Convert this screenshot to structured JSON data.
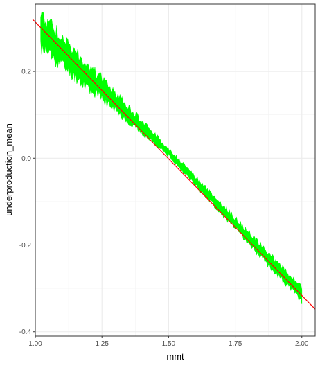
{
  "chart_data": {
    "type": "line",
    "title": "",
    "xlabel": "mmt",
    "ylabel": "underproduction_mean",
    "xlim": [
      1.0,
      2.05
    ],
    "ylim": [
      -0.41,
      0.355
    ],
    "x_ticks": [
      1.0,
      1.25,
      1.5,
      1.75,
      2.0
    ],
    "x_tick_labels": [
      "1.00",
      "1.25",
      "1.50",
      "1.75",
      "2.00"
    ],
    "y_ticks": [
      0.2,
      0.0,
      -0.2,
      -0.4
    ],
    "y_tick_labels": [
      "0.2",
      "0.0",
      "-0.2",
      "-0.4"
    ],
    "grid": true,
    "theme": "bw",
    "series": [
      {
        "kind": "band",
        "color": "#00ff00",
        "x": [
          1.02,
          1.5,
          2.0
        ],
        "y_min": [
          0.237,
          0.002,
          -0.338
        ],
        "y_max": [
          0.35,
          0.025,
          -0.29
        ]
      },
      {
        "kind": "line",
        "color": "#ff0000",
        "x": [
          0.99,
          2.05
        ],
        "y": [
          0.32,
          -0.348
        ]
      }
    ]
  }
}
